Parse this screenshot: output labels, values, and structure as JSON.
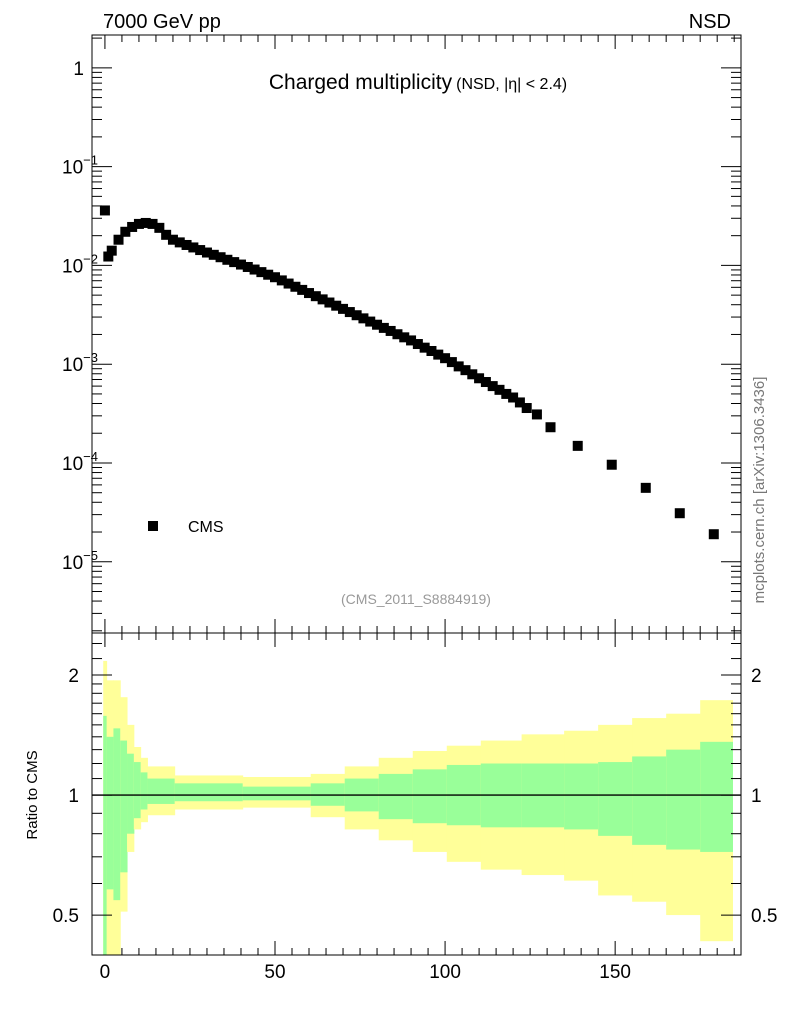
{
  "header": {
    "left": "7000 GeV pp",
    "right": "NSD"
  },
  "side_label": "mcplots.cern.ch [arXiv:1306.3436]",
  "analysis_id": "(CMS_2011_S8884919)",
  "chart_data": [
    {
      "type": "scatter",
      "title": "Charged multiplicity",
      "subtitle": "(NSD, |η| < 2.4)",
      "xlabel": "",
      "ylabel": "",
      "xlim": [
        -3.8,
        187
      ],
      "ylim": [
        1.9e-06,
        2.15
      ],
      "yscale": "log",
      "ytick_labels": [
        {
          "value": 1,
          "base": "1",
          "exp": ""
        },
        {
          "value": 0.1,
          "base": "10",
          "exp": "−1"
        },
        {
          "value": 0.01,
          "base": "10",
          "exp": "−2"
        },
        {
          "value": 0.001,
          "base": "10",
          "exp": "−3"
        },
        {
          "value": 0.0001,
          "base": "10",
          "exp": "−4"
        },
        {
          "value": 1e-05,
          "base": "10",
          "exp": "−5"
        }
      ],
      "legend": {
        "entries": [
          "CMS"
        ],
        "placement": "bottom-left"
      },
      "series": [
        {
          "name": "CMS",
          "x": [
            0,
            1,
            2,
            4,
            6,
            8,
            10,
            12,
            14,
            16,
            18,
            20,
            22,
            24,
            26,
            28,
            30,
            32,
            34,
            36,
            38,
            40,
            42,
            44,
            46,
            48,
            50,
            52,
            54,
            56,
            58,
            60,
            62,
            64,
            66,
            68,
            70,
            72,
            74,
            76,
            78,
            80,
            82,
            84,
            86,
            88,
            90,
            92,
            94,
            96,
            98,
            100,
            102,
            104,
            106,
            108,
            110,
            112,
            114,
            116,
            118,
            120,
            122,
            124,
            127,
            131,
            139,
            149,
            159,
            169,
            179
          ],
          "y": [
            0.036,
            0.0123,
            0.0141,
            0.0182,
            0.0219,
            0.0245,
            0.0263,
            0.0269,
            0.0263,
            0.024,
            0.0204,
            0.0182,
            0.0171,
            0.0161,
            0.0152,
            0.0143,
            0.0135,
            0.0128,
            0.0121,
            0.0114,
            0.0108,
            0.0102,
            0.00964,
            0.00908,
            0.00855,
            0.00805,
            0.00759,
            0.00705,
            0.00655,
            0.00608,
            0.00565,
            0.00525,
            0.00488,
            0.00453,
            0.00421,
            0.00391,
            0.00363,
            0.00337,
            0.00313,
            0.00291,
            0.0027,
            0.00251,
            0.00233,
            0.00217,
            0.00201,
            0.00187,
            0.00174,
            0.0016,
            0.00147,
            0.00136,
            0.00125,
            0.00115,
            0.00105,
            0.00095,
            0.00087,
            0.00079,
            0.00072,
            0.00066,
            0.0006,
            0.00055,
            0.0005,
            0.00046,
            0.00041,
            0.00036,
            0.00031,
            0.00023,
            0.000149,
            9.6e-05,
            5.6e-05,
            3.1e-05,
            1.9e-05
          ]
        }
      ]
    },
    {
      "type": "area",
      "ylabel": "Ratio to CMS",
      "xlim": [
        -3.8,
        187
      ],
      "ylim": [
        0.397,
        2.55
      ],
      "yscale": "log",
      "xtick_labels": [
        "0",
        "50",
        "100",
        "150"
      ],
      "xticks": [
        0,
        50,
        100,
        150
      ],
      "ytick_labels": [
        "2",
        "1",
        "0.5"
      ],
      "yticks": [
        2,
        1,
        0.5
      ],
      "reference_line": 1,
      "band_colors": {
        "outer": "#ffff99",
        "inner": "#99ff99"
      },
      "bins": [
        {
          "lo": -0.5,
          "hi": 0.5,
          "outer_lo": 0.3,
          "inner_lo": 0.3,
          "inner_hi": 1.58,
          "outer_hi": 2.17
        },
        {
          "lo": 0.5,
          "hi": 2.5,
          "outer_lo": 0.3,
          "inner_lo": 0.58,
          "inner_hi": 1.4,
          "outer_hi": 1.94
        },
        {
          "lo": 2.5,
          "hi": 4.5,
          "outer_lo": 0.3,
          "inner_lo": 0.545,
          "inner_hi": 1.47,
          "outer_hi": 1.94
        },
        {
          "lo": 4.5,
          "hi": 6.5,
          "outer_lo": 0.51,
          "inner_lo": 0.64,
          "inner_hi": 1.37,
          "outer_hi": 1.76
        },
        {
          "lo": 6.5,
          "hi": 8.5,
          "outer_lo": 0.72,
          "inner_lo": 0.8,
          "inner_hi": 1.27,
          "outer_hi": 1.5
        },
        {
          "lo": 8.5,
          "hi": 10.5,
          "outer_lo": 0.82,
          "inner_lo": 0.875,
          "inner_hi": 1.21,
          "outer_hi": 1.32
        },
        {
          "lo": 10.5,
          "hi": 12.5,
          "outer_lo": 0.855,
          "inner_lo": 0.92,
          "inner_hi": 1.14,
          "outer_hi": 1.24
        },
        {
          "lo": 12.5,
          "hi": 20.5,
          "outer_lo": 0.89,
          "inner_lo": 0.95,
          "inner_hi": 1.1,
          "outer_hi": 1.18
        },
        {
          "lo": 20.5,
          "hi": 40.5,
          "outer_lo": 0.92,
          "inner_lo": 0.965,
          "inner_hi": 1.07,
          "outer_hi": 1.12
        },
        {
          "lo": 40.5,
          "hi": 60.5,
          "outer_lo": 0.93,
          "inner_lo": 0.97,
          "inner_hi": 1.05,
          "outer_hi": 1.11
        },
        {
          "lo": 60.5,
          "hi": 70.5,
          "outer_lo": 0.88,
          "inner_lo": 0.94,
          "inner_hi": 1.07,
          "outer_hi": 1.13
        },
        {
          "lo": 70.5,
          "hi": 80.5,
          "outer_lo": 0.82,
          "inner_lo": 0.91,
          "inner_hi": 1.1,
          "outer_hi": 1.18
        },
        {
          "lo": 80.5,
          "hi": 90.5,
          "outer_lo": 0.77,
          "inner_lo": 0.87,
          "inner_hi": 1.13,
          "outer_hi": 1.24
        },
        {
          "lo": 90.5,
          "hi": 100.5,
          "outer_lo": 0.72,
          "inner_lo": 0.85,
          "inner_hi": 1.16,
          "outer_hi": 1.29
        },
        {
          "lo": 100.5,
          "hi": 110.5,
          "outer_lo": 0.68,
          "inner_lo": 0.84,
          "inner_hi": 1.19,
          "outer_hi": 1.33
        },
        {
          "lo": 110.5,
          "hi": 122.5,
          "outer_lo": 0.65,
          "inner_lo": 0.83,
          "inner_hi": 1.2,
          "outer_hi": 1.37
        },
        {
          "lo": 122.5,
          "hi": 135,
          "outer_lo": 0.63,
          "inner_lo": 0.83,
          "inner_hi": 1.2,
          "outer_hi": 1.42
        },
        {
          "lo": 135,
          "hi": 145,
          "outer_lo": 0.61,
          "inner_lo": 0.82,
          "inner_hi": 1.2,
          "outer_hi": 1.45
        },
        {
          "lo": 145,
          "hi": 155,
          "outer_lo": 0.56,
          "inner_lo": 0.79,
          "inner_hi": 1.21,
          "outer_hi": 1.5
        },
        {
          "lo": 155,
          "hi": 165,
          "outer_lo": 0.54,
          "inner_lo": 0.75,
          "inner_hi": 1.25,
          "outer_hi": 1.56
        },
        {
          "lo": 165,
          "hi": 175,
          "outer_lo": 0.5,
          "inner_lo": 0.73,
          "inner_hi": 1.3,
          "outer_hi": 1.6
        },
        {
          "lo": 175,
          "hi": 184.5,
          "outer_lo": 0.43,
          "inner_lo": 0.72,
          "inner_hi": 1.36,
          "outer_hi": 1.73
        }
      ]
    }
  ]
}
